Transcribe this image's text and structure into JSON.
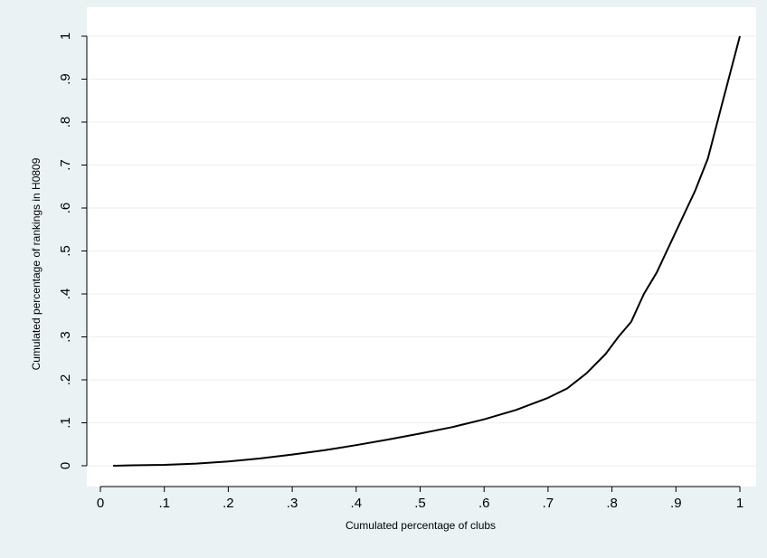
{
  "chart_data": {
    "type": "line",
    "title": "",
    "xlabel": "Cumulated percentage of clubs",
    "ylabel": "Cumulated percentage of rankings in H0809",
    "xlim": [
      0,
      1
    ],
    "ylim": [
      0,
      1
    ],
    "x_ticks": [
      0,
      0.1,
      0.2,
      0.3,
      0.4,
      0.5,
      0.6,
      0.7,
      0.8,
      0.9,
      1
    ],
    "x_tick_labels": [
      "0",
      ".1",
      ".2",
      ".3",
      ".4",
      ".5",
      ".6",
      ".7",
      ".8",
      ".9",
      "1"
    ],
    "y_ticks": [
      0,
      0.1,
      0.2,
      0.3,
      0.4,
      0.5,
      0.6,
      0.7,
      0.8,
      0.9,
      1
    ],
    "y_tick_labels": [
      "0",
      ".1",
      ".2",
      ".3",
      ".4",
      ".5",
      ".6",
      ".7",
      ".8",
      ".9",
      "1"
    ],
    "grid": true,
    "legend": "none",
    "colors": {
      "outer_background": "#eaf2f3",
      "plot_background": "#ffffff",
      "grid": "#eaf2f3",
      "line": "#000000"
    },
    "series": [
      {
        "x": [
          0.02,
          0.05,
          0.1,
          0.15,
          0.2,
          0.25,
          0.3,
          0.35,
          0.4,
          0.45,
          0.5,
          0.55,
          0.6,
          0.65,
          0.7,
          0.73,
          0.76,
          0.79,
          0.81,
          0.83,
          0.85,
          0.87,
          0.9,
          0.93,
          0.95,
          0.97,
          1.0
        ],
        "values": [
          0.0,
          0.001,
          0.002,
          0.005,
          0.01,
          0.017,
          0.026,
          0.036,
          0.048,
          0.061,
          0.075,
          0.09,
          0.108,
          0.13,
          0.158,
          0.18,
          0.215,
          0.26,
          0.3,
          0.335,
          0.4,
          0.45,
          0.545,
          0.64,
          0.715,
          0.83,
          1.0
        ]
      }
    ]
  }
}
